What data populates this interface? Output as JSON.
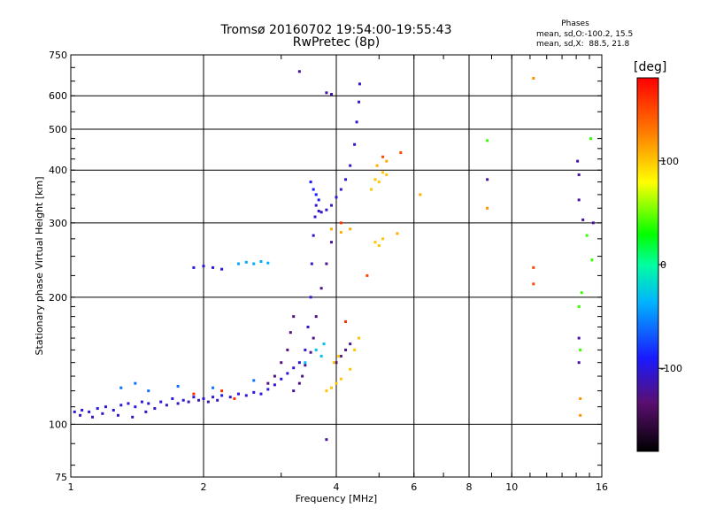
{
  "chart_data": {
    "type": "scatter",
    "title": "Tromsø 20160702 19:54:00-19:55:43",
    "subtitle": "RwPretec (8p)",
    "xlabel": "Frequency [MHz]",
    "ylabel": "Stationary phase Virtual Height [km]",
    "x_scale": "log",
    "y_scale": "log",
    "xlim": [
      1,
      16
    ],
    "ylim": [
      75,
      750
    ],
    "x_ticks": [
      1,
      2,
      4,
      6,
      8,
      10,
      16
    ],
    "x_tick_labels": [
      "1",
      "2",
      "4",
      "6",
      "8",
      "10",
      "16"
    ],
    "y_ticks": [
      75,
      100,
      200,
      300,
      400,
      500,
      600,
      750
    ],
    "y_tick_labels": [
      "75",
      "100",
      "200",
      "300",
      "400",
      "500",
      "600",
      "750"
    ],
    "grid": true,
    "phases_header": "Phases",
    "phases_o": "mean, sd,O:-100.2, 15.5",
    "phases_x": "mean, sd,X:  88.5, 21.8",
    "colorbar": {
      "label": "[deg]",
      "range": [
        -180,
        180
      ],
      "ticks": [
        100,
        0,
        -100
      ],
      "tick_labels": [
        "100",
        "0",
        "-100"
      ]
    },
    "traces": [
      {
        "phase": -100,
        "points": [
          [
            1.02,
            107
          ],
          [
            1.06,
            108
          ],
          [
            1.1,
            107
          ],
          [
            1.15,
            109
          ],
          [
            1.2,
            110
          ],
          [
            1.25,
            108
          ],
          [
            1.3,
            111
          ],
          [
            1.35,
            112
          ],
          [
            1.4,
            110
          ],
          [
            1.45,
            113
          ],
          [
            1.5,
            112
          ],
          [
            1.6,
            113
          ],
          [
            1.7,
            115
          ],
          [
            1.8,
            114
          ],
          [
            1.9,
            116
          ],
          [
            2.0,
            115
          ],
          [
            2.1,
            116
          ],
          [
            2.2,
            117
          ],
          [
            2.3,
            116
          ],
          [
            2.4,
            118
          ],
          [
            2.5,
            117
          ],
          [
            2.6,
            119
          ],
          [
            2.7,
            118
          ],
          [
            2.8,
            121
          ],
          [
            2.9,
            124
          ],
          [
            3.0,
            128
          ],
          [
            3.1,
            132
          ],
          [
            3.2,
            136
          ]
        ]
      },
      {
        "phase": -110,
        "points": [
          [
            1.05,
            105
          ],
          [
            1.12,
            104
          ],
          [
            1.18,
            106
          ],
          [
            1.28,
            105
          ],
          [
            1.38,
            104
          ],
          [
            1.48,
            107
          ],
          [
            1.55,
            109
          ],
          [
            1.65,
            111
          ],
          [
            1.75,
            112
          ],
          [
            1.85,
            113
          ],
          [
            1.95,
            114
          ],
          [
            2.05,
            113
          ],
          [
            2.15,
            114
          ]
        ]
      },
      {
        "phase": -105,
        "points": [
          [
            3.3,
            140
          ],
          [
            3.4,
            150
          ],
          [
            3.45,
            170
          ],
          [
            3.5,
            200
          ],
          [
            3.52,
            240
          ],
          [
            3.55,
            280
          ],
          [
            3.58,
            310
          ],
          [
            3.6,
            330
          ],
          [
            3.65,
            320
          ],
          [
            3.7,
            318
          ],
          [
            3.8,
            322
          ],
          [
            3.9,
            330
          ],
          [
            4.0,
            345
          ],
          [
            4.1,
            360
          ],
          [
            4.2,
            380
          ],
          [
            4.3,
            410
          ],
          [
            4.4,
            460
          ],
          [
            4.45,
            520
          ],
          [
            4.5,
            580
          ],
          [
            4.52,
            640
          ]
        ]
      },
      {
        "phase": -90,
        "points": [
          [
            3.5,
            375
          ],
          [
            3.55,
            360
          ],
          [
            3.6,
            350
          ],
          [
            3.65,
            340
          ]
        ]
      },
      {
        "phase": -125,
        "points": [
          [
            3.2,
            120
          ],
          [
            3.3,
            125
          ],
          [
            3.35,
            130
          ],
          [
            3.4,
            138
          ],
          [
            3.5,
            148
          ],
          [
            3.55,
            160
          ],
          [
            3.6,
            180
          ],
          [
            3.7,
            210
          ],
          [
            3.8,
            240
          ],
          [
            3.9,
            270
          ],
          [
            4.0,
            140
          ],
          [
            4.1,
            145
          ],
          [
            4.2,
            150
          ],
          [
            4.3,
            155
          ]
        ]
      },
      {
        "phase": -130,
        "points": [
          [
            2.8,
            125
          ],
          [
            2.9,
            130
          ],
          [
            3.0,
            140
          ],
          [
            3.1,
            150
          ],
          [
            3.15,
            165
          ],
          [
            3.2,
            180
          ]
        ]
      },
      {
        "phase": -40,
        "points": [
          [
            2.4,
            240
          ],
          [
            2.5,
            242
          ],
          [
            2.6,
            240
          ],
          [
            2.7,
            243
          ],
          [
            2.8,
            241
          ]
        ]
      },
      {
        "phase": -100,
        "points": [
          [
            1.9,
            235
          ],
          [
            2.0,
            237
          ],
          [
            2.1,
            235
          ],
          [
            2.2,
            233
          ]
        ]
      },
      {
        "phase": -30,
        "points": [
          [
            3.4,
            140
          ],
          [
            3.6,
            150
          ],
          [
            3.7,
            145
          ],
          [
            3.75,
            155
          ]
        ]
      },
      {
        "phase": 100,
        "points": [
          [
            3.8,
            120
          ],
          [
            3.9,
            122
          ],
          [
            4.0,
            125
          ],
          [
            4.1,
            128
          ],
          [
            4.3,
            135
          ],
          [
            4.4,
            150
          ],
          [
            4.5,
            160
          ],
          [
            4.8,
            360
          ],
          [
            4.9,
            380
          ],
          [
            5.0,
            375
          ],
          [
            5.1,
            395
          ],
          [
            5.2,
            390
          ],
          [
            4.9,
            270
          ],
          [
            5.0,
            265
          ],
          [
            5.1,
            275
          ],
          [
            3.95,
            140
          ],
          [
            4.05,
            145
          ]
        ]
      },
      {
        "phase": 110,
        "points": [
          [
            3.9,
            290
          ],
          [
            4.1,
            285
          ],
          [
            4.3,
            290
          ],
          [
            6.2,
            350
          ],
          [
            5.2,
            420
          ],
          [
            4.95,
            410
          ],
          [
            5.5,
            283
          ]
        ]
      },
      {
        "phase": 150,
        "points": [
          [
            5.1,
            430
          ],
          [
            4.7,
            225
          ],
          [
            5.6,
            440
          ],
          [
            11.2,
            235
          ],
          [
            11.2,
            215
          ]
        ]
      },
      {
        "phase": 40,
        "points": [
          [
            8.8,
            470
          ],
          [
            15.1,
            475
          ],
          [
            14.4,
            205
          ],
          [
            14.2,
            190
          ],
          [
            14.3,
            150
          ],
          [
            14.8,
            280
          ],
          [
            15.2,
            245
          ]
        ]
      },
      {
        "phase": 120,
        "points": [
          [
            8.8,
            325
          ],
          [
            11.2,
            660
          ],
          [
            14.3,
            115
          ],
          [
            14.3,
            105
          ]
        ]
      },
      {
        "phase": -120,
        "points": [
          [
            8.8,
            380
          ],
          [
            14.1,
            420
          ],
          [
            14.2,
            390
          ],
          [
            14.2,
            340
          ],
          [
            14.5,
            305
          ],
          [
            15.3,
            300
          ],
          [
            14.2,
            160
          ],
          [
            14.2,
            140
          ],
          [
            3.8,
            92
          ],
          [
            3.3,
            685
          ],
          [
            3.8,
            610
          ],
          [
            3.9,
            605
          ]
        ]
      },
      {
        "phase": -60,
        "points": [
          [
            1.3,
            122
          ],
          [
            1.4,
            125
          ],
          [
            1.5,
            120
          ],
          [
            1.75,
            123
          ],
          [
            2.1,
            122
          ],
          [
            2.6,
            127
          ]
        ]
      },
      {
        "phase": 160,
        "points": [
          [
            1.9,
            118
          ],
          [
            2.2,
            120
          ],
          [
            2.35,
            115
          ],
          [
            4.1,
            300
          ],
          [
            4.2,
            175
          ]
        ]
      }
    ]
  }
}
